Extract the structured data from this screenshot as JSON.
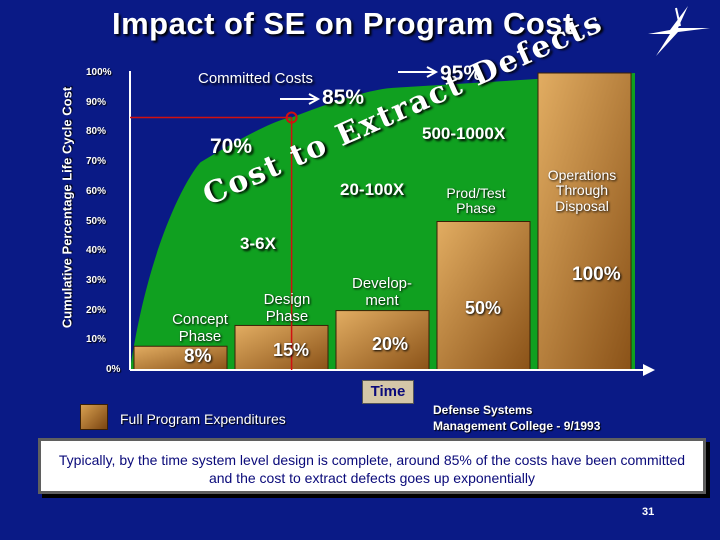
{
  "page": {
    "title": "Impact of SE on Program Cost",
    "caption": "Typically, by the time system level design is complete, around 85% of the costs have been committed and the cost to extract defects goes up exponentially",
    "page_number": "31",
    "source_line1": "Defense Systems",
    "source_line2": "Management College - 9/1993",
    "legend_label": "Full Program Expenditures"
  },
  "chart_data": {
    "type": "bar",
    "ylabel": "Cumulative Percentage Life Cycle Cost",
    "xlabel": "Time",
    "ylim": [
      0,
      100
    ],
    "y_ticks": [
      "0%",
      "10%",
      "20%",
      "30%",
      "40%",
      "50%",
      "60%",
      "70%",
      "80%",
      "90%",
      "100%"
    ],
    "categories": [
      "Concept Phase",
      "Design Phase",
      "Develop- ment",
      "Prod/Test Phase",
      "Operations Through Disposal"
    ],
    "series": [
      {
        "name": "Full Program Expenditures",
        "values": [
          8,
          15,
          20,
          50,
          100
        ]
      }
    ],
    "bar_labels": [
      "8%",
      "15%",
      "20%",
      "50%",
      "100%"
    ],
    "committed_costs": {
      "label": "Committed Costs",
      "points": [
        [
          0,
          0
        ],
        [
          0.7,
          70
        ],
        [
          1.6,
          85
        ],
        [
          2.6,
          95
        ],
        [
          5,
          100
        ]
      ],
      "annotations": [
        "70%",
        "85%",
        "95%"
      ]
    },
    "defect_cost": {
      "label": "Cost to Extract Defects",
      "multipliers": [
        "3-6X",
        "20-100X",
        "500-1000X"
      ]
    },
    "colors": {
      "background": "#0a1a86",
      "committed_area": "#10a020",
      "bar": "#c88a3a"
    }
  }
}
